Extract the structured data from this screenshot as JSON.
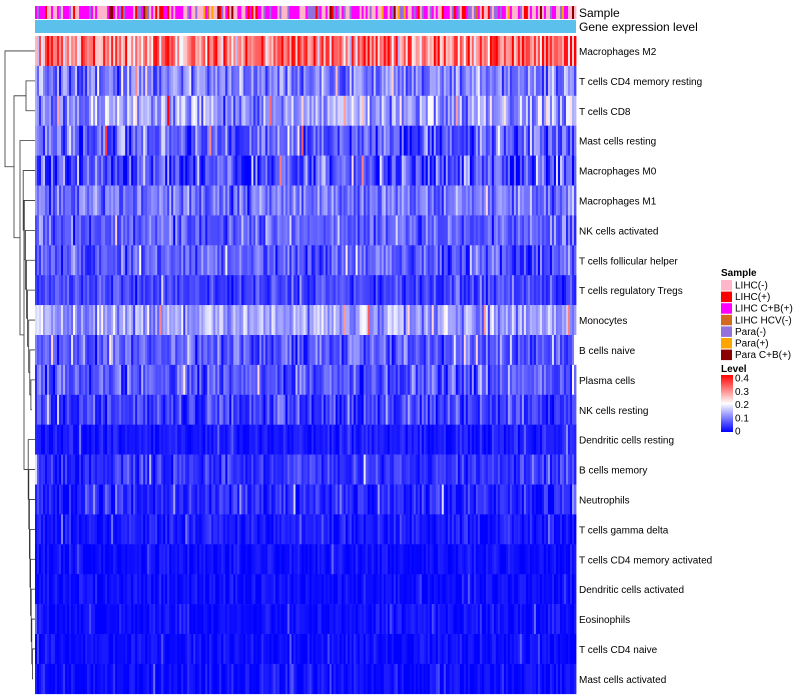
{
  "chart_data": {
    "type": "heatmap",
    "annotation_tracks": [
      "Sample",
      "Gene expression level"
    ],
    "rows": [
      "Macrophages M2",
      "T cells CD4 memory resting",
      "T cells CD8",
      "Mast cells resting",
      "Macrophages M0",
      "Macrophages M1",
      "NK cells activated",
      "T cells follicular helper",
      "T cells regulatory  Tregs",
      "Monocytes",
      "B cells naive",
      "Plasma cells",
      "NK cells resting",
      "Dendritic cells resting",
      "B cells memory",
      "Neutrophils",
      "T cells gamma delta",
      "T cells CD4 memory activated",
      "Dendritic cells activated",
      "Eosinophils",
      "T cells CD4 naive",
      "Mast cells activated"
    ],
    "row_mean_levels": [
      0.3,
      0.1,
      0.13,
      0.07,
      0.06,
      0.09,
      0.07,
      0.07,
      0.05,
      0.13,
      0.07,
      0.07,
      0.05,
      0.02,
      0.04,
      0.03,
      0.02,
      0.01,
      0.01,
      0.01,
      0.01,
      0.01
    ],
    "row_variability": [
      0.09,
      0.05,
      0.06,
      0.06,
      0.06,
      0.04,
      0.04,
      0.04,
      0.03,
      0.05,
      0.04,
      0.04,
      0.04,
      0.02,
      0.03,
      0.03,
      0.02,
      0.015,
      0.015,
      0.015,
      0.015,
      0.02
    ],
    "sample_legend": {
      "title": "Sample",
      "items": [
        {
          "label": "LIHC(-)",
          "color": "#ffb6c8"
        },
        {
          "label": "LIHC(+)",
          "color": "#ff0000"
        },
        {
          "label": "LIHC C+B(+)",
          "color": "#ff00ff"
        },
        {
          "label": "LIHC HCV(-)",
          "color": "#d2691e"
        },
        {
          "label": "Para(-)",
          "color": "#9370db"
        },
        {
          "label": "Para(+)",
          "color": "#ffa500"
        },
        {
          "label": "Para C+B(+)",
          "color": "#8b0000"
        }
      ]
    },
    "level_legend": {
      "title": "Level",
      "ticks": [
        "0.4",
        "0.3",
        "0.2",
        "0.1",
        "0"
      ],
      "range": [
        0,
        0.4
      ],
      "colors": [
        "#ff0000",
        "#ffffff",
        "#0000ff"
      ]
    },
    "expression_track_color": "#5bc0eb"
  }
}
